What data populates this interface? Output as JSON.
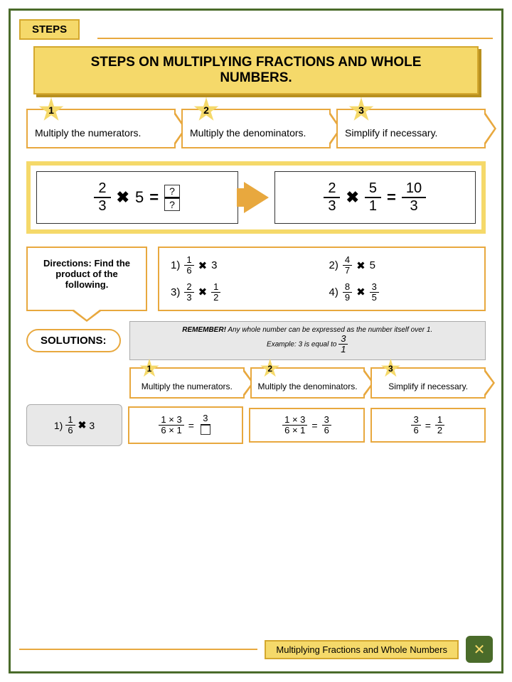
{
  "colors": {
    "border": "#4a6b2a",
    "accent": "#f5d96a",
    "accent_border": "#d4a82e",
    "line": "#e8a83e",
    "gray": "#e8e8e8"
  },
  "tab": "STEPS",
  "title": "STEPS ON MULTIPLYING FRACTIONS AND WHOLE NUMBERS.",
  "steps": [
    {
      "num": "1",
      "text": "Multiply the numerators."
    },
    {
      "num": "2",
      "text": "Multiply the denominators."
    },
    {
      "num": "3",
      "text": "Simplify if necessary."
    }
  ],
  "example": {
    "left": {
      "f1n": "2",
      "f1d": "3",
      "op": "✖",
      "whole": "5",
      "eq": "=",
      "q": "?"
    },
    "right": {
      "f1n": "2",
      "f1d": "3",
      "op": "✖",
      "f2n": "5",
      "f2d": "1",
      "eq": "=",
      "rn": "10",
      "rd": "3"
    }
  },
  "directions": "Directions: Find the product of the following.",
  "problems": [
    {
      "label": "1)",
      "an": "1",
      "ad": "6",
      "op": "✖",
      "b": "3"
    },
    {
      "label": "2)",
      "an": "4",
      "ad": "7",
      "op": "✖",
      "b": "5"
    },
    {
      "label": "3)",
      "an": "2",
      "ad": "3",
      "op": "✖",
      "bn": "1",
      "bd": "2"
    },
    {
      "label": "4)",
      "an": "8",
      "ad": "9",
      "op": "✖",
      "bn": "3",
      "bd": "5"
    }
  ],
  "solutions_label": "SOLUTIONS:",
  "remember": {
    "bold": "REMEMBER!",
    "text": " Any whole number can be expressed as the number itself over 1.",
    "ex_label": "Example: 3 is equal to",
    "exn": "3",
    "exd": "1"
  },
  "steps2": [
    {
      "num": "1",
      "text": "Multiply the numerators."
    },
    {
      "num": "2",
      "text": "Multiply the denominators."
    },
    {
      "num": "3",
      "text": "Simplify if necessary."
    }
  ],
  "solution_ex": {
    "q": {
      "label": "1)",
      "n": "1",
      "d": "6",
      "op": "✖",
      "w": "3"
    },
    "w1": {
      "tn": "1 × 3",
      "td": "6 × 1",
      "eq": "=",
      "rn": "3"
    },
    "w2": {
      "tn": "1 × 3",
      "td": "6 × 1",
      "eq": "=",
      "rn": "3",
      "rd": "6"
    },
    "w3": {
      "an": "3",
      "ad": "6",
      "eq": "=",
      "rn": "1",
      "rd": "2"
    }
  },
  "footer": "Multiplying Fractions and Whole Numbers"
}
